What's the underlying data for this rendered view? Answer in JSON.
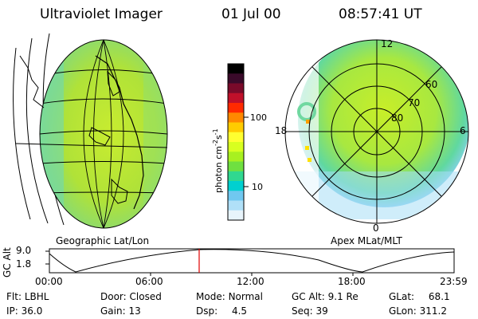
{
  "header": {
    "title": "Ultraviolet Imager",
    "date": "01 Jul 00",
    "time": "08:57:41 UT"
  },
  "panels": {
    "geo_label": "Geographic Lat/Lon",
    "apex_label": "Apex MLat/MLT"
  },
  "colorbar": {
    "label": "photon cm",
    "label_sup1": "-2",
    "label_mid": "s",
    "label_sup2": "-1",
    "ticks": [
      "100",
      "10"
    ],
    "colors": [
      "#000000",
      "#3a0a2a",
      "#7a0a2a",
      "#c0102a",
      "#ff2a00",
      "#ff8800",
      "#ffcc00",
      "#ffff30",
      "#d8ff20",
      "#a8f020",
      "#6fe040",
      "#30d890",
      "#00d0d0",
      "#70c8f0",
      "#b0e0f8",
      "#e8f4fb"
    ]
  },
  "polar": {
    "mlt_labels": [
      "12",
      "18",
      "6",
      "0"
    ],
    "mlat_labels": [
      "60",
      "70",
      "80"
    ]
  },
  "altitude_plot": {
    "ylabel": "GC Alt",
    "yticks": [
      "9.0",
      "1.8"
    ],
    "xticks": [
      "00:00",
      "06:00",
      "12:00",
      "18:00",
      "23:59"
    ],
    "marker_color": "#e00000"
  },
  "info": {
    "row1": [
      {
        "key": "Flt:",
        "value": "LBHL"
      },
      {
        "key": "Door:",
        "value": "Closed"
      },
      {
        "key": "Mode:",
        "value": "Normal"
      },
      {
        "key": "GC Alt:",
        "value": "9.1 Re"
      },
      {
        "key": "GLat:",
        "value": "68.1"
      }
    ],
    "row2": [
      {
        "key": "IP:",
        "value": "36.0"
      },
      {
        "key": "Gain:",
        "value": "13"
      },
      {
        "key": "Dsp:",
        "value": "4.5"
      },
      {
        "key": "Seq:",
        "value": "39"
      },
      {
        "key": "GLon:",
        "value": "311.2"
      }
    ]
  }
}
